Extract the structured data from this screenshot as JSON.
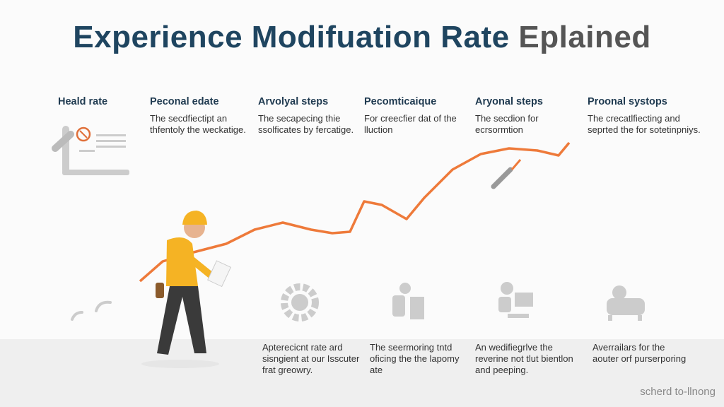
{
  "title": {
    "main": "Experience Modifuation Rate",
    "gray": "Eplained"
  },
  "top_steps": [
    {
      "heading": "Heald rate",
      "text": ""
    },
    {
      "heading": "Peconal edate",
      "text": "The secdfiectipt an thfentoly the weckatige."
    },
    {
      "heading": "Arvolyal steps",
      "text": "The secapecing thie ssolficates by fercatige."
    },
    {
      "heading": "Pecomticaique",
      "text": "For creecfier dat of the lluction"
    },
    {
      "heading": "Aryonal steps",
      "text": "The secdion for ecrsormtion"
    },
    {
      "heading": "Proonal systops",
      "text": "The crecatlfiecting and seprted the for sotetinpniys."
    }
  ],
  "bottom_steps": [
    "Apterecicnt rate ard sisngient at our Isscuter frat greowry.",
    "The seermoring tntd oficing the the lapomy ate",
    "An wedifiegrlve the reverine not tlut bientlon and peeping.",
    "Averrailars for the aouter orf purserporing"
  ],
  "footer": "scherd to-llnong",
  "colors": {
    "accent": "#ee7a3a",
    "title": "#1f4560",
    "worker_shirt": "#f5b324"
  },
  "icons": [
    "document-icon",
    "wrench-icon",
    "gear-icon",
    "worker-icon",
    "computer-user-icon",
    "sofa-icon",
    "signal-icon"
  ]
}
